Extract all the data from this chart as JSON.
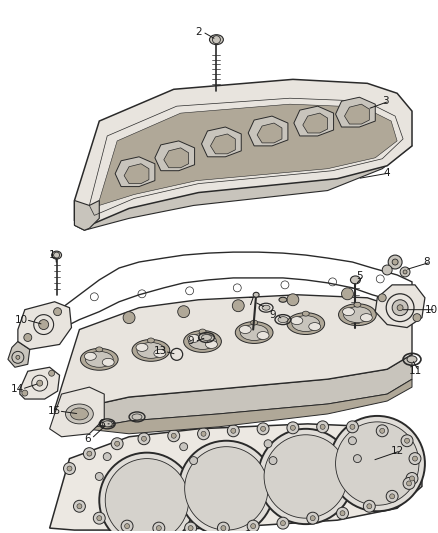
{
  "bg_color": "#ffffff",
  "lc": "#2a2a2a",
  "lc_light": "#555555",
  "fc_cover": "#e8e4de",
  "fc_head": "#d8d4cc",
  "fc_gasket": "#f0ede8",
  "fc_hgasket": "#ece8e2",
  "fc_dark": "#b0a898",
  "fc_mid": "#c8c4bc",
  "fc_white": "#ffffff",
  "label_fs": 7.5,
  "lw": 0.9
}
